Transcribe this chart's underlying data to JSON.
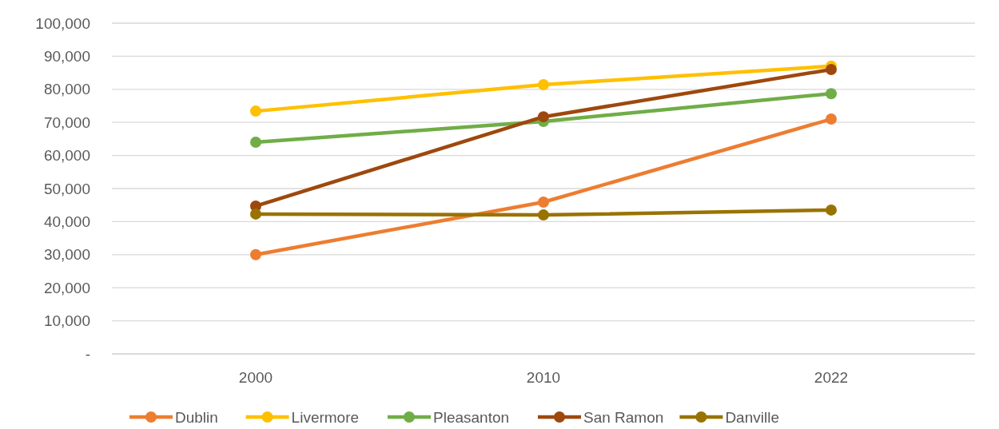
{
  "chart_data": {
    "type": "line",
    "categories": [
      "2000",
      "2010",
      "2022"
    ],
    "series": [
      {
        "name": "Dublin",
        "color": "#ed7d31",
        "values": [
          30000,
          45900,
          71000
        ]
      },
      {
        "name": "Livermore",
        "color": "#ffc000",
        "values": [
          73400,
          81400,
          87000
        ]
      },
      {
        "name": "Pleasanton",
        "color": "#70ad47",
        "values": [
          64000,
          70300,
          78700
        ]
      },
      {
        "name": "San Ramon",
        "color": "#9e480e",
        "values": [
          44700,
          71700,
          86000
        ]
      },
      {
        "name": "Danville",
        "color": "#997300",
        "values": [
          42300,
          42000,
          43500
        ]
      }
    ],
    "ylim": [
      0,
      100000
    ],
    "yticks": [
      {
        "value": 0,
        "label": "-"
      },
      {
        "value": 10000,
        "label": "10,000"
      },
      {
        "value": 20000,
        "label": "20,000"
      },
      {
        "value": 30000,
        "label": "30,000"
      },
      {
        "value": 40000,
        "label": "40,000"
      },
      {
        "value": 50000,
        "label": "50,000"
      },
      {
        "value": 60000,
        "label": "60,000"
      },
      {
        "value": 70000,
        "label": "70,000"
      },
      {
        "value": 80000,
        "label": "80,000"
      },
      {
        "value": 90000,
        "label": "90,000"
      },
      {
        "value": 100000,
        "label": "100,000"
      }
    ],
    "grid": "y",
    "legend": "bottom",
    "marker": "circle",
    "line_style": "solid"
  }
}
